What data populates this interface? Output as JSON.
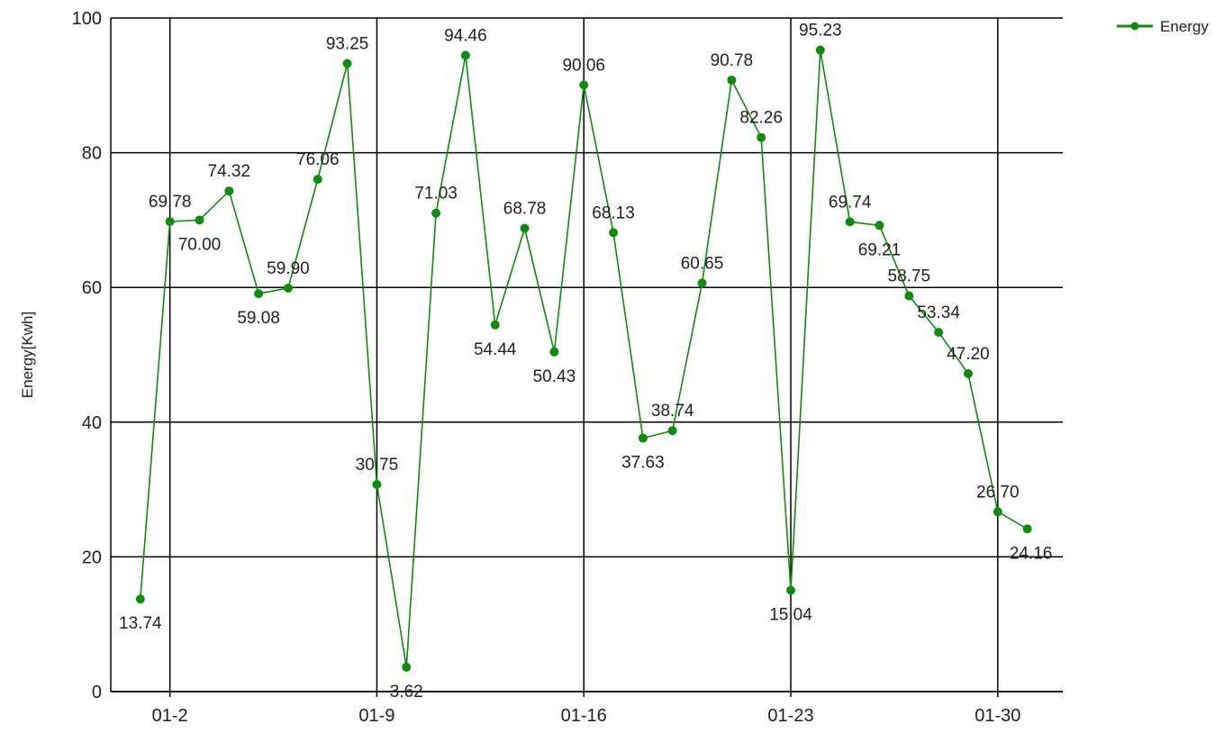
{
  "chart_data": {
    "type": "line",
    "title": "",
    "xlabel": "",
    "ylabel": "Energy[Kwh]",
    "ylim": [
      0,
      100
    ],
    "yticks": [
      0,
      20,
      40,
      60,
      80,
      100
    ],
    "xticks": [
      "01-2",
      "01-9",
      "01-16",
      "01-23",
      "01-30"
    ],
    "xtick_positions": [
      2,
      9,
      16,
      23,
      30
    ],
    "grid": true,
    "legend_position": "top-right",
    "x": [
      1,
      2,
      3,
      4,
      5,
      6,
      7,
      8,
      9,
      10,
      11,
      12,
      13,
      14,
      15,
      16,
      17,
      18,
      19,
      20,
      21,
      22,
      23,
      24,
      25,
      26,
      27,
      28,
      29,
      30,
      31
    ],
    "series": [
      {
        "name": "Energy",
        "color": "#108a10",
        "values": [
          13.74,
          69.78,
          70.0,
          74.32,
          59.08,
          59.9,
          76.06,
          93.25,
          30.75,
          3.62,
          71.03,
          94.46,
          54.44,
          68.78,
          50.43,
          90.06,
          68.13,
          37.63,
          38.74,
          60.65,
          90.78,
          82.26,
          15.04,
          95.23,
          69.74,
          69.21,
          58.75,
          53.34,
          47.2,
          26.7,
          24.16
        ],
        "labels": [
          "13.74",
          "69.78",
          "70.00",
          "74.32",
          "59.08",
          "59.90",
          "76.06",
          "93.25",
          "30.75",
          "3.62",
          "71.03",
          "94.46",
          "54.44",
          "68.78",
          "50.43",
          "90.06",
          "68.13",
          "37.63",
          "38.74",
          "60.65",
          "90.78",
          "82.26",
          "15.04",
          "95.23",
          "69.74",
          "69.21",
          "58.75",
          "53.34",
          "47.20",
          "26.70",
          "24.16"
        ]
      }
    ]
  }
}
